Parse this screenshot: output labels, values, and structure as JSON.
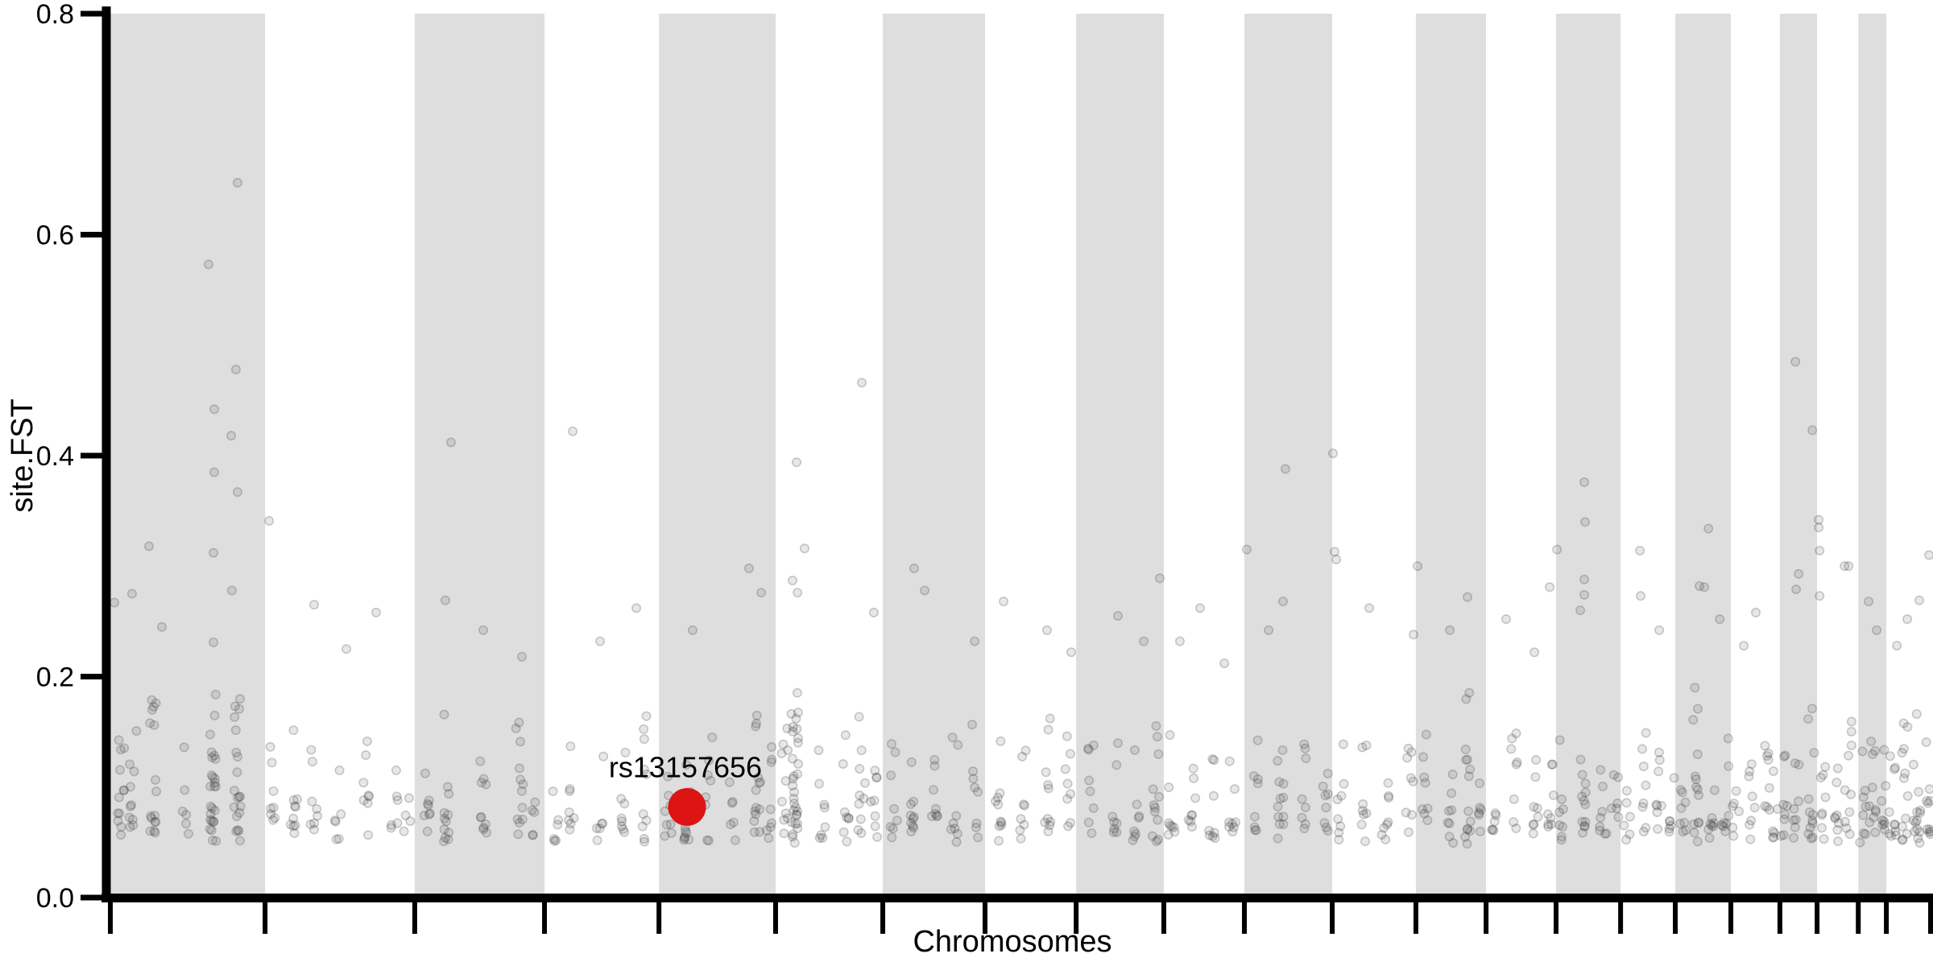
{
  "chart_data": {
    "type": "scatter",
    "subtype": "manhattan-fst",
    "title": "",
    "xlabel": "Chromosomes",
    "ylabel": "site.FST",
    "ylim": [
      0.0,
      0.8
    ],
    "yticks": [
      {
        "value": 0.0,
        "label": "0.0"
      },
      {
        "value": 0.2,
        "label": "0.2"
      },
      {
        "value": 0.4,
        "label": "0.4"
      },
      {
        "value": 0.6,
        "label": "0.6"
      },
      {
        "value": 0.8,
        "label": "0.8"
      }
    ],
    "grid": false,
    "legend": "none",
    "n_chromosomes": 22,
    "chromosome_boundaries_frac": [
      0.0,
      0.0849,
      0.167,
      0.2382,
      0.301,
      0.365,
      0.4238,
      0.4799,
      0.5299,
      0.578,
      0.6222,
      0.6704,
      0.7163,
      0.7548,
      0.7932,
      0.8286,
      0.8586,
      0.8891,
      0.916,
      0.9364,
      0.959,
      0.9744,
      1.0
    ],
    "shaded_bands": "odd chromosomes (1,3,5,...,21)",
    "colors": {
      "band": "#dedede",
      "point": "#3c3c3c",
      "highlight": "#dc1414",
      "axis": "#000000"
    },
    "highlight": {
      "label": "rs13157656",
      "chromosome": 5,
      "x_frac": 0.3164,
      "fst": 0.082
    },
    "notable_points": [
      [
        0.0698,
        0.647
      ],
      [
        0.0539,
        0.573
      ],
      [
        0.0689,
        0.478
      ],
      [
        0.057,
        0.442
      ],
      [
        0.0663,
        0.418
      ],
      [
        0.057,
        0.385
      ],
      [
        0.0698,
        0.367
      ],
      [
        0.0212,
        0.318
      ],
      [
        0.0566,
        0.312
      ],
      [
        0.0667,
        0.278
      ],
      [
        0.0119,
        0.275
      ],
      [
        0.0022,
        0.267
      ],
      [
        0.0283,
        0.245
      ],
      [
        0.0566,
        0.231
      ],
      [
        0.0871,
        0.341
      ],
      [
        0.1118,
        0.265
      ],
      [
        0.1458,
        0.258
      ],
      [
        0.1295,
        0.225
      ],
      [
        0.1869,
        0.412
      ],
      [
        0.1838,
        0.269
      ],
      [
        0.2046,
        0.242
      ],
      [
        0.2258,
        0.218
      ],
      [
        0.2537,
        0.422
      ],
      [
        0.2886,
        0.262
      ],
      [
        0.2687,
        0.232
      ],
      [
        0.3504,
        0.298
      ],
      [
        0.3571,
        0.276
      ],
      [
        0.3195,
        0.242
      ],
      [
        0.4123,
        0.466
      ],
      [
        0.3765,
        0.394
      ],
      [
        0.3809,
        0.316
      ],
      [
        0.3743,
        0.287
      ],
      [
        0.377,
        0.276
      ],
      [
        0.4189,
        0.258
      ],
      [
        0.441,
        0.298
      ],
      [
        0.4468,
        0.278
      ],
      [
        0.4742,
        0.232
      ],
      [
        0.4901,
        0.268
      ],
      [
        0.5139,
        0.242
      ],
      [
        0.5272,
        0.222
      ],
      [
        0.5758,
        0.289
      ],
      [
        0.5528,
        0.255
      ],
      [
        0.567,
        0.232
      ],
      [
        0.5979,
        0.262
      ],
      [
        0.5868,
        0.232
      ],
      [
        0.6112,
        0.212
      ],
      [
        0.6447,
        0.388
      ],
      [
        0.6235,
        0.315
      ],
      [
        0.6434,
        0.268
      ],
      [
        0.6355,
        0.242
      ],
      [
        0.6708,
        0.402
      ],
      [
        0.6717,
        0.313
      ],
      [
        0.6726,
        0.306
      ],
      [
        0.6907,
        0.262
      ],
      [
        0.715,
        0.238
      ],
      [
        0.7172,
        0.3
      ],
      [
        0.7446,
        0.272
      ],
      [
        0.7349,
        0.242
      ],
      [
        0.7897,
        0.281
      ],
      [
        0.7658,
        0.252
      ],
      [
        0.7813,
        0.222
      ],
      [
        0.8087,
        0.376
      ],
      [
        0.8091,
        0.34
      ],
      [
        0.7937,
        0.315
      ],
      [
        0.8087,
        0.288
      ],
      [
        0.8087,
        0.274
      ],
      [
        0.8065,
        0.26
      ],
      [
        0.8392,
        0.314
      ],
      [
        0.8396,
        0.273
      ],
      [
        0.8498,
        0.242
      ],
      [
        0.8768,
        0.334
      ],
      [
        0.8745,
        0.281
      ],
      [
        0.8719,
        0.282
      ],
      [
        0.883,
        0.252
      ],
      [
        0.9028,
        0.258
      ],
      [
        0.8962,
        0.228
      ],
      [
        0.9245,
        0.485
      ],
      [
        0.9338,
        0.423
      ],
      [
        0.9263,
        0.293
      ],
      [
        0.9249,
        0.279
      ],
      [
        0.9373,
        0.342
      ],
      [
        0.9373,
        0.335
      ],
      [
        0.9378,
        0.314
      ],
      [
        0.9515,
        0.3
      ],
      [
        0.9537,
        0.3
      ],
      [
        0.9378,
        0.273
      ],
      [
        0.9647,
        0.268
      ],
      [
        0.9691,
        0.242
      ],
      [
        0.9925,
        0.269
      ],
      [
        0.9859,
        0.252
      ],
      [
        0.9978,
        0.31
      ],
      [
        0.9802,
        0.228
      ]
    ],
    "background_clusters": [
      [
        0.0057,
        12,
        0.16
      ],
      [
        0.0124,
        10,
        0.17
      ],
      [
        0.0234,
        16,
        0.18
      ],
      [
        0.0411,
        6,
        0.14
      ],
      [
        0.0566,
        26,
        0.19
      ],
      [
        0.0698,
        20,
        0.18
      ],
      [
        0.0897,
        8,
        0.15
      ],
      [
        0.1008,
        10,
        0.16
      ],
      [
        0.1118,
        8,
        0.15
      ],
      [
        0.1251,
        6,
        0.13
      ],
      [
        0.1405,
        8,
        0.15
      ],
      [
        0.156,
        6,
        0.13
      ],
      [
        0.1626,
        4,
        0.11
      ],
      [
        0.1737,
        8,
        0.15
      ],
      [
        0.1847,
        12,
        0.17
      ],
      [
        0.2046,
        10,
        0.16
      ],
      [
        0.2245,
        12,
        0.17
      ],
      [
        0.2333,
        5,
        0.12
      ],
      [
        0.2444,
        6,
        0.13
      ],
      [
        0.2532,
        8,
        0.15
      ],
      [
        0.2687,
        6,
        0.14
      ],
      [
        0.282,
        8,
        0.16
      ],
      [
        0.293,
        10,
        0.17
      ],
      [
        0.3062,
        8,
        0.15
      ],
      [
        0.3164,
        10,
        0.16
      ],
      [
        0.3283,
        8,
        0.15
      ],
      [
        0.3416,
        6,
        0.13
      ],
      [
        0.3549,
        14,
        0.18
      ],
      [
        0.3615,
        8,
        0.15
      ],
      [
        0.3703,
        10,
        0.16
      ],
      [
        0.3756,
        30,
        0.21
      ],
      [
        0.3902,
        8,
        0.14
      ],
      [
        0.4035,
        8,
        0.15
      ],
      [
        0.4123,
        10,
        0.17
      ],
      [
        0.4189,
        8,
        0.15
      ],
      [
        0.43,
        8,
        0.15
      ],
      [
        0.441,
        10,
        0.16
      ],
      [
        0.4521,
        8,
        0.14
      ],
      [
        0.4631,
        8,
        0.15
      ],
      [
        0.4742,
        8,
        0.16
      ],
      [
        0.4874,
        10,
        0.16
      ],
      [
        0.5007,
        8,
        0.14
      ],
      [
        0.5139,
        10,
        0.17
      ],
      [
        0.525,
        8,
        0.15
      ],
      [
        0.5382,
        8,
        0.15
      ],
      [
        0.5515,
        8,
        0.16
      ],
      [
        0.5625,
        8,
        0.14
      ],
      [
        0.5736,
        12,
        0.18
      ],
      [
        0.5824,
        8,
        0.15
      ],
      [
        0.5935,
        8,
        0.14
      ],
      [
        0.6045,
        8,
        0.16
      ],
      [
        0.6156,
        8,
        0.15
      ],
      [
        0.6288,
        8,
        0.15
      ],
      [
        0.6421,
        12,
        0.17
      ],
      [
        0.6553,
        8,
        0.14
      ],
      [
        0.6664,
        8,
        0.15
      ],
      [
        0.6752,
        8,
        0.15
      ],
      [
        0.6885,
        8,
        0.14
      ],
      [
        0.6995,
        8,
        0.15
      ],
      [
        0.7128,
        8,
        0.16
      ],
      [
        0.7216,
        8,
        0.15
      ],
      [
        0.7349,
        8,
        0.14
      ],
      [
        0.7446,
        14,
        0.19
      ],
      [
        0.7526,
        6,
        0.13
      ],
      [
        0.7592,
        6,
        0.13
      ],
      [
        0.7703,
        8,
        0.15
      ],
      [
        0.7813,
        8,
        0.14
      ],
      [
        0.7902,
        8,
        0.16
      ],
      [
        0.7968,
        8,
        0.15
      ],
      [
        0.8078,
        12,
        0.18
      ],
      [
        0.8189,
        8,
        0.14
      ],
      [
        0.8255,
        6,
        0.13
      ],
      [
        0.8321,
        6,
        0.13
      ],
      [
        0.841,
        8,
        0.15
      ],
      [
        0.8498,
        8,
        0.14
      ],
      [
        0.8564,
        6,
        0.13
      ],
      [
        0.8631,
        8,
        0.15
      ],
      [
        0.8697,
        14,
        0.19
      ],
      [
        0.8785,
        8,
        0.14
      ],
      [
        0.886,
        8,
        0.16
      ],
      [
        0.8918,
        6,
        0.13
      ],
      [
        0.9006,
        8,
        0.15
      ],
      [
        0.9094,
        8,
        0.14
      ],
      [
        0.9139,
        6,
        0.13
      ],
      [
        0.9183,
        8,
        0.15
      ],
      [
        0.9249,
        8,
        0.16
      ],
      [
        0.9329,
        12,
        0.18
      ],
      [
        0.9391,
        8,
        0.15
      ],
      [
        0.947,
        8,
        0.14
      ],
      [
        0.9537,
        10,
        0.16
      ],
      [
        0.9612,
        8,
        0.15
      ],
      [
        0.9669,
        10,
        0.17
      ],
      [
        0.9727,
        8,
        0.14
      ],
      [
        0.978,
        10,
        0.16
      ],
      [
        0.9846,
        12,
        0.17
      ],
      [
        0.9912,
        14,
        0.18
      ],
      [
        0.9978,
        10,
        0.16
      ]
    ]
  }
}
